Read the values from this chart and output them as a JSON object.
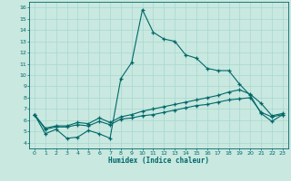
{
  "xlabel": "Humidex (Indice chaleur)",
  "bg_color": "#c8e8e0",
  "line_color": "#006868",
  "grid_color": "#a8d8d0",
  "xlim": [
    -0.5,
    23.5
  ],
  "ylim": [
    3.5,
    16.5
  ],
  "xticks": [
    0,
    1,
    2,
    3,
    4,
    5,
    6,
    7,
    8,
    9,
    10,
    11,
    12,
    13,
    14,
    15,
    16,
    17,
    18,
    19,
    20,
    21,
    22,
    23
  ],
  "yticks": [
    4,
    5,
    6,
    7,
    8,
    9,
    10,
    11,
    12,
    13,
    14,
    15,
    16
  ],
  "line1_x": [
    0,
    1,
    2,
    3,
    4,
    5,
    6,
    7,
    8,
    9,
    10,
    11,
    12,
    13,
    14,
    15,
    16,
    17,
    18,
    19,
    20,
    21,
    22,
    23
  ],
  "line1_y": [
    6.5,
    4.8,
    5.2,
    4.4,
    4.5,
    5.1,
    4.8,
    4.4,
    9.7,
    11.1,
    15.8,
    13.8,
    13.2,
    13.0,
    11.8,
    11.5,
    10.6,
    10.4,
    10.4,
    9.2,
    8.2,
    6.6,
    5.9,
    6.5
  ],
  "line2_x": [
    0,
    1,
    2,
    3,
    4,
    5,
    6,
    7,
    8,
    9,
    10,
    11,
    12,
    13,
    14,
    15,
    16,
    17,
    18,
    19,
    20,
    21,
    22,
    23
  ],
  "line2_y": [
    6.5,
    5.3,
    5.5,
    5.5,
    5.8,
    5.7,
    6.2,
    5.8,
    6.3,
    6.5,
    6.8,
    7.0,
    7.2,
    7.4,
    7.6,
    7.8,
    8.0,
    8.2,
    8.5,
    8.7,
    8.3,
    7.5,
    6.4,
    6.6
  ],
  "line3_x": [
    0,
    1,
    2,
    3,
    4,
    5,
    6,
    7,
    8,
    9,
    10,
    11,
    12,
    13,
    14,
    15,
    16,
    17,
    18,
    19,
    20,
    21,
    22,
    23
  ],
  "line3_y": [
    6.5,
    5.2,
    5.4,
    5.4,
    5.6,
    5.5,
    5.9,
    5.6,
    6.1,
    6.2,
    6.4,
    6.5,
    6.7,
    6.9,
    7.1,
    7.3,
    7.4,
    7.6,
    7.8,
    7.9,
    8.0,
    6.7,
    6.3,
    6.5
  ]
}
